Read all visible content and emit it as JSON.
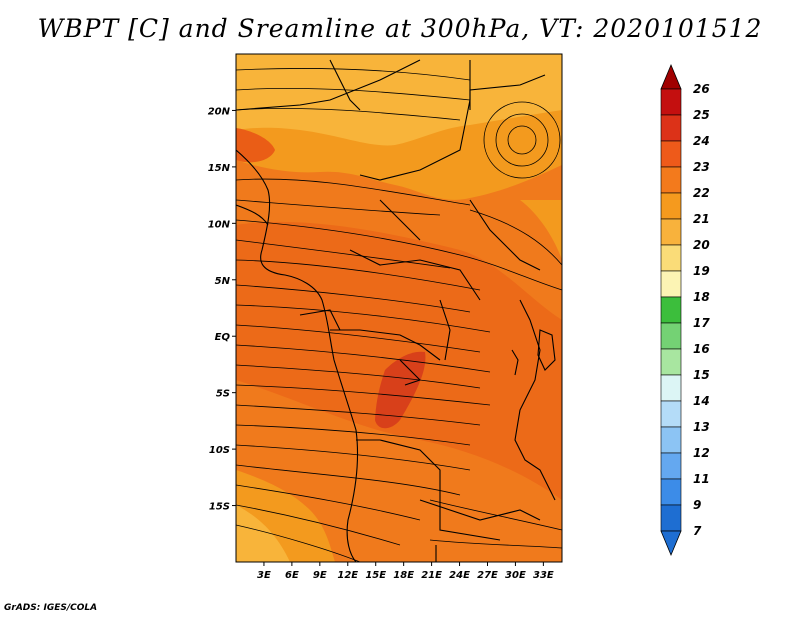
{
  "title": "WBPT [C] and Sreamline at 300hPa, VT: 2020101512",
  "credit": "GrADS: IGES/COLA",
  "map": {
    "lon_range": [
      0,
      35
    ],
    "lat_range": [
      -20,
      25
    ],
    "lat_ticks": [
      {
        "value": 20,
        "label": "20N"
      },
      {
        "value": 15,
        "label": "15N"
      },
      {
        "value": 10,
        "label": "10N"
      },
      {
        "value": 5,
        "label": "5N"
      },
      {
        "value": 0,
        "label": "EQ"
      },
      {
        "value": -5,
        "label": "5S"
      },
      {
        "value": -10,
        "label": "10S"
      },
      {
        "value": -15,
        "label": "15S"
      }
    ],
    "lon_ticks": [
      {
        "value": 3,
        "label": "3E"
      },
      {
        "value": 6,
        "label": "6E"
      },
      {
        "value": 9,
        "label": "9E"
      },
      {
        "value": 12,
        "label": "12E"
      },
      {
        "value": 15,
        "label": "15E"
      },
      {
        "value": 18,
        "label": "18E"
      },
      {
        "value": 21,
        "label": "21E"
      },
      {
        "value": 24,
        "label": "24E"
      },
      {
        "value": 27,
        "label": "27E"
      },
      {
        "value": 30,
        "label": "30E"
      },
      {
        "value": 33,
        "label": "33E"
      }
    ],
    "field_colors": {
      "level_20": "#f8b43a",
      "level_21": "#f39a1e",
      "level_22": "#f07a1c",
      "level_23": "#ea5d16",
      "level_24": "#d8401a"
    }
  },
  "colorbar": {
    "levels": [
      {
        "label": "26",
        "color": "#a00000"
      },
      {
        "label": "25",
        "color": "#c40f0f"
      },
      {
        "label": "24",
        "color": "#dc3218"
      },
      {
        "label": "23",
        "color": "#ee5a1a"
      },
      {
        "label": "22",
        "color": "#f37a1c"
      },
      {
        "label": "21",
        "color": "#f59a1e"
      },
      {
        "label": "20",
        "color": "#f8b23c"
      },
      {
        "label": "19",
        "color": "#fadc78"
      },
      {
        "label": "18",
        "color": "#fcf4b4"
      },
      {
        "label": "17",
        "color": "#3cbe3c"
      },
      {
        "label": "16",
        "color": "#74d274"
      },
      {
        "label": "15",
        "color": "#a8e6a0"
      },
      {
        "label": "14",
        "color": "#dcf5f5"
      },
      {
        "label": "13",
        "color": "#b4dcf8"
      },
      {
        "label": "12",
        "color": "#8cc4f4"
      },
      {
        "label": "11",
        "color": "#64a8f0"
      },
      {
        "label": "9",
        "color": "#3c8ce8"
      },
      {
        "label": "7",
        "color": "#1e6ed2"
      }
    ],
    "arrow_bottom_color": "#1e6ed2"
  }
}
